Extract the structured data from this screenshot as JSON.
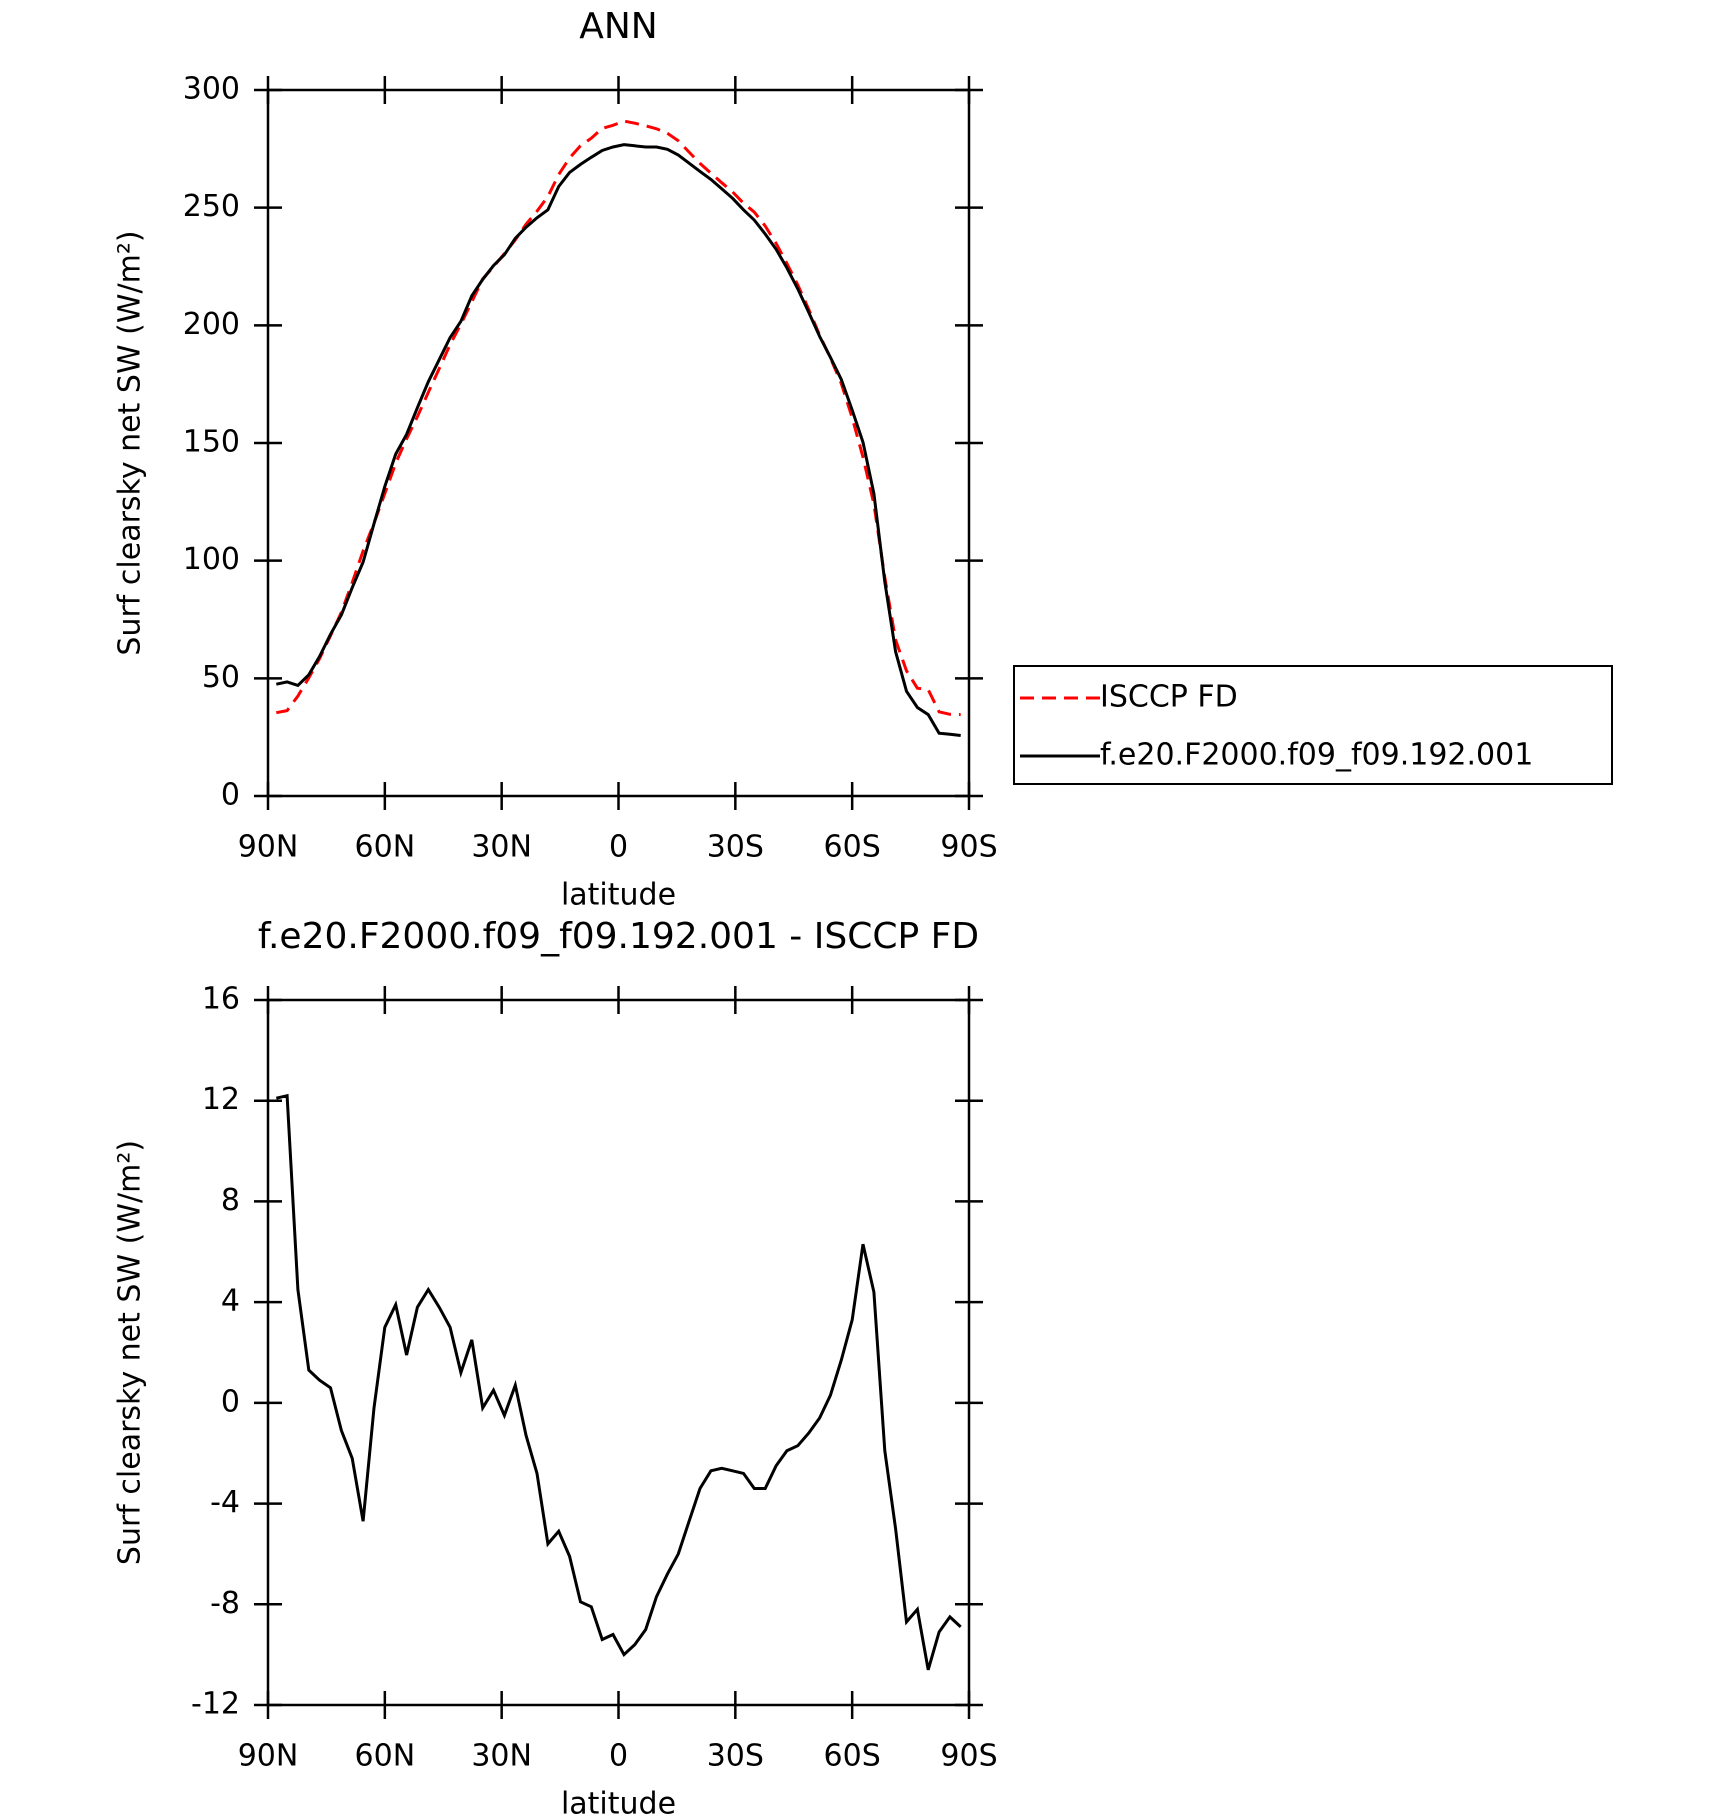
{
  "chart_data": [
    {
      "type": "line",
      "title": "ANN",
      "xlabel": "latitude",
      "ylabel": "Surf clearsky net SW (W/m²)",
      "x": [
        87.86,
        85.1,
        82.31,
        79.53,
        76.74,
        73.95,
        71.16,
        68.37,
        65.58,
        62.79,
        60.0,
        57.21,
        54.42,
        51.63,
        48.84,
        46.04,
        43.25,
        40.46,
        37.67,
        34.88,
        32.09,
        29.3,
        26.51,
        23.72,
        20.93,
        18.14,
        15.35,
        12.56,
        9.77,
        6.98,
        4.19,
        1.4,
        -1.4,
        -4.19,
        -6.98,
        -9.77,
        -12.56,
        -15.35,
        -18.14,
        -20.93,
        -23.72,
        -26.51,
        -29.3,
        -32.09,
        -34.88,
        -37.67,
        -40.46,
        -43.25,
        -46.04,
        -48.84,
        -51.63,
        -54.42,
        -57.21,
        -60.0,
        -62.79,
        -65.58,
        -68.37,
        -71.16,
        -73.95,
        -76.74,
        -79.53,
        -82.31,
        -85.1,
        -87.86
      ],
      "xlim": [
        90,
        -90
      ],
      "xticks": [
        {
          "value": 90,
          "label": "90N"
        },
        {
          "value": 60,
          "label": "60N"
        },
        {
          "value": 30,
          "label": "30N"
        },
        0,
        {
          "value": -30,
          "label": "30S"
        },
        {
          "value": -60,
          "label": "60S"
        },
        {
          "value": -90,
          "label": "90S"
        }
      ],
      "ylim": [
        0,
        300
      ],
      "yticks": [
        0,
        50,
        100,
        150,
        200,
        250,
        300
      ],
      "legend": "right",
      "series": [
        {
          "name": "ISCCP FD",
          "color": "#ff0000",
          "dash": "dashed",
          "values": [
            35.4,
            36.3,
            42.5,
            50.2,
            58.4,
            68.1,
            78.1,
            90.7,
            104.1,
            115.9,
            128.5,
            141.4,
            151.8,
            161.2,
            171.5,
            181.6,
            191.8,
            200.5,
            210,
            219.7,
            224.9,
            230.5,
            236.3,
            243,
            248.5,
            254.7,
            264.1,
            271.1,
            276.3,
            279.5,
            283.7,
            285,
            286.8,
            285.9,
            284.8,
            283.5,
            281.6,
            278.4,
            273.6,
            268.8,
            264.7,
            260.6,
            256.7,
            251.9,
            248.1,
            242.2,
            234.8,
            226.3,
            217.2,
            206.8,
            195.9,
            186.1,
            175.3,
            160.7,
            144,
            124.1,
            92.9,
            66.3,
            53.2,
            45.8,
            45.2,
            35.8,
            34.7,
            34.6
          ]
        },
        {
          "name": "f.e20.F2000.f09_f09.192.001",
          "color": "#000000",
          "dash": "solid",
          "values": [
            47.5,
            48.5,
            47,
            51.5,
            59.3,
            68.7,
            77,
            88.5,
            99.4,
            115.7,
            131.5,
            145.3,
            153.7,
            165,
            176,
            185.4,
            194.8,
            201.7,
            212.5,
            219.5,
            225.4,
            230,
            237,
            241.7,
            245.7,
            249.1,
            259,
            265,
            268.4,
            271.4,
            274.3,
            275.8,
            276.8,
            276.3,
            275.8,
            275.8,
            274.8,
            272.4,
            268.9,
            265.4,
            262,
            258,
            254,
            249.1,
            244.7,
            238.8,
            232.3,
            224.4,
            215.5,
            205.6,
            195.3,
            186.4,
            177,
            164,
            150.3,
            128.5,
            91,
            61.3,
            44.5,
            37.6,
            34.6,
            26.7,
            26.2,
            25.7
          ]
        }
      ]
    },
    {
      "type": "line",
      "title": "f.e20.F2000.f09_f09.192.001 - ISCCP FD",
      "xlabel": "latitude",
      "ylabel": "Surf clearsky net SW (W/m²)",
      "x": [
        87.86,
        85.1,
        82.31,
        79.53,
        76.74,
        73.95,
        71.16,
        68.37,
        65.58,
        62.79,
        60.0,
        57.21,
        54.42,
        51.63,
        48.84,
        46.04,
        43.25,
        40.46,
        37.67,
        34.88,
        32.09,
        29.3,
        26.51,
        23.72,
        20.93,
        18.14,
        15.35,
        12.56,
        9.77,
        6.98,
        4.19,
        1.4,
        -1.4,
        -4.19,
        -6.98,
        -9.77,
        -12.56,
        -15.35,
        -18.14,
        -20.93,
        -23.72,
        -26.51,
        -29.3,
        -32.09,
        -34.88,
        -37.67,
        -40.46,
        -43.25,
        -46.04,
        -48.84,
        -51.63,
        -54.42,
        -57.21,
        -60.0,
        -62.79,
        -65.58,
        -68.37,
        -71.16,
        -73.95,
        -76.74,
        -79.53,
        -82.31,
        -85.1,
        -87.86
      ],
      "xlim": [
        90,
        -90
      ],
      "xticks": [
        {
          "value": 90,
          "label": "90N"
        },
        {
          "value": 60,
          "label": "60N"
        },
        {
          "value": 30,
          "label": "30N"
        },
        0,
        {
          "value": -30,
          "label": "30S"
        },
        {
          "value": -60,
          "label": "60S"
        },
        {
          "value": -90,
          "label": "90S"
        }
      ],
      "ylim": [
        -12,
        16
      ],
      "yticks": [
        -12,
        -8,
        -4,
        0,
        4,
        8,
        12,
        16
      ],
      "color": "#000000",
      "values": [
        12.1,
        12.2,
        4.5,
        1.3,
        0.9,
        0.6,
        -1.1,
        -2.2,
        -4.7,
        -0.2,
        3.0,
        3.9,
        1.9,
        3.8,
        4.5,
        3.8,
        3.0,
        1.2,
        2.5,
        -0.2,
        0.5,
        -0.5,
        0.7,
        -1.3,
        -2.8,
        -5.6,
        -5.1,
        -6.1,
        -7.9,
        -8.1,
        -9.4,
        -9.2,
        -10.0,
        -9.6,
        -9.0,
        -7.7,
        -6.8,
        -6.0,
        -4.7,
        -3.4,
        -2.7,
        -2.6,
        -2.7,
        -2.8,
        -3.4,
        -3.4,
        -2.5,
        -1.9,
        -1.7,
        -1.2,
        -0.6,
        0.3,
        1.7,
        3.3,
        6.3,
        4.4,
        -1.9,
        -5.0,
        -8.7,
        -8.2,
        -10.6,
        -9.1,
        -8.5,
        -8.9
      ]
    }
  ]
}
